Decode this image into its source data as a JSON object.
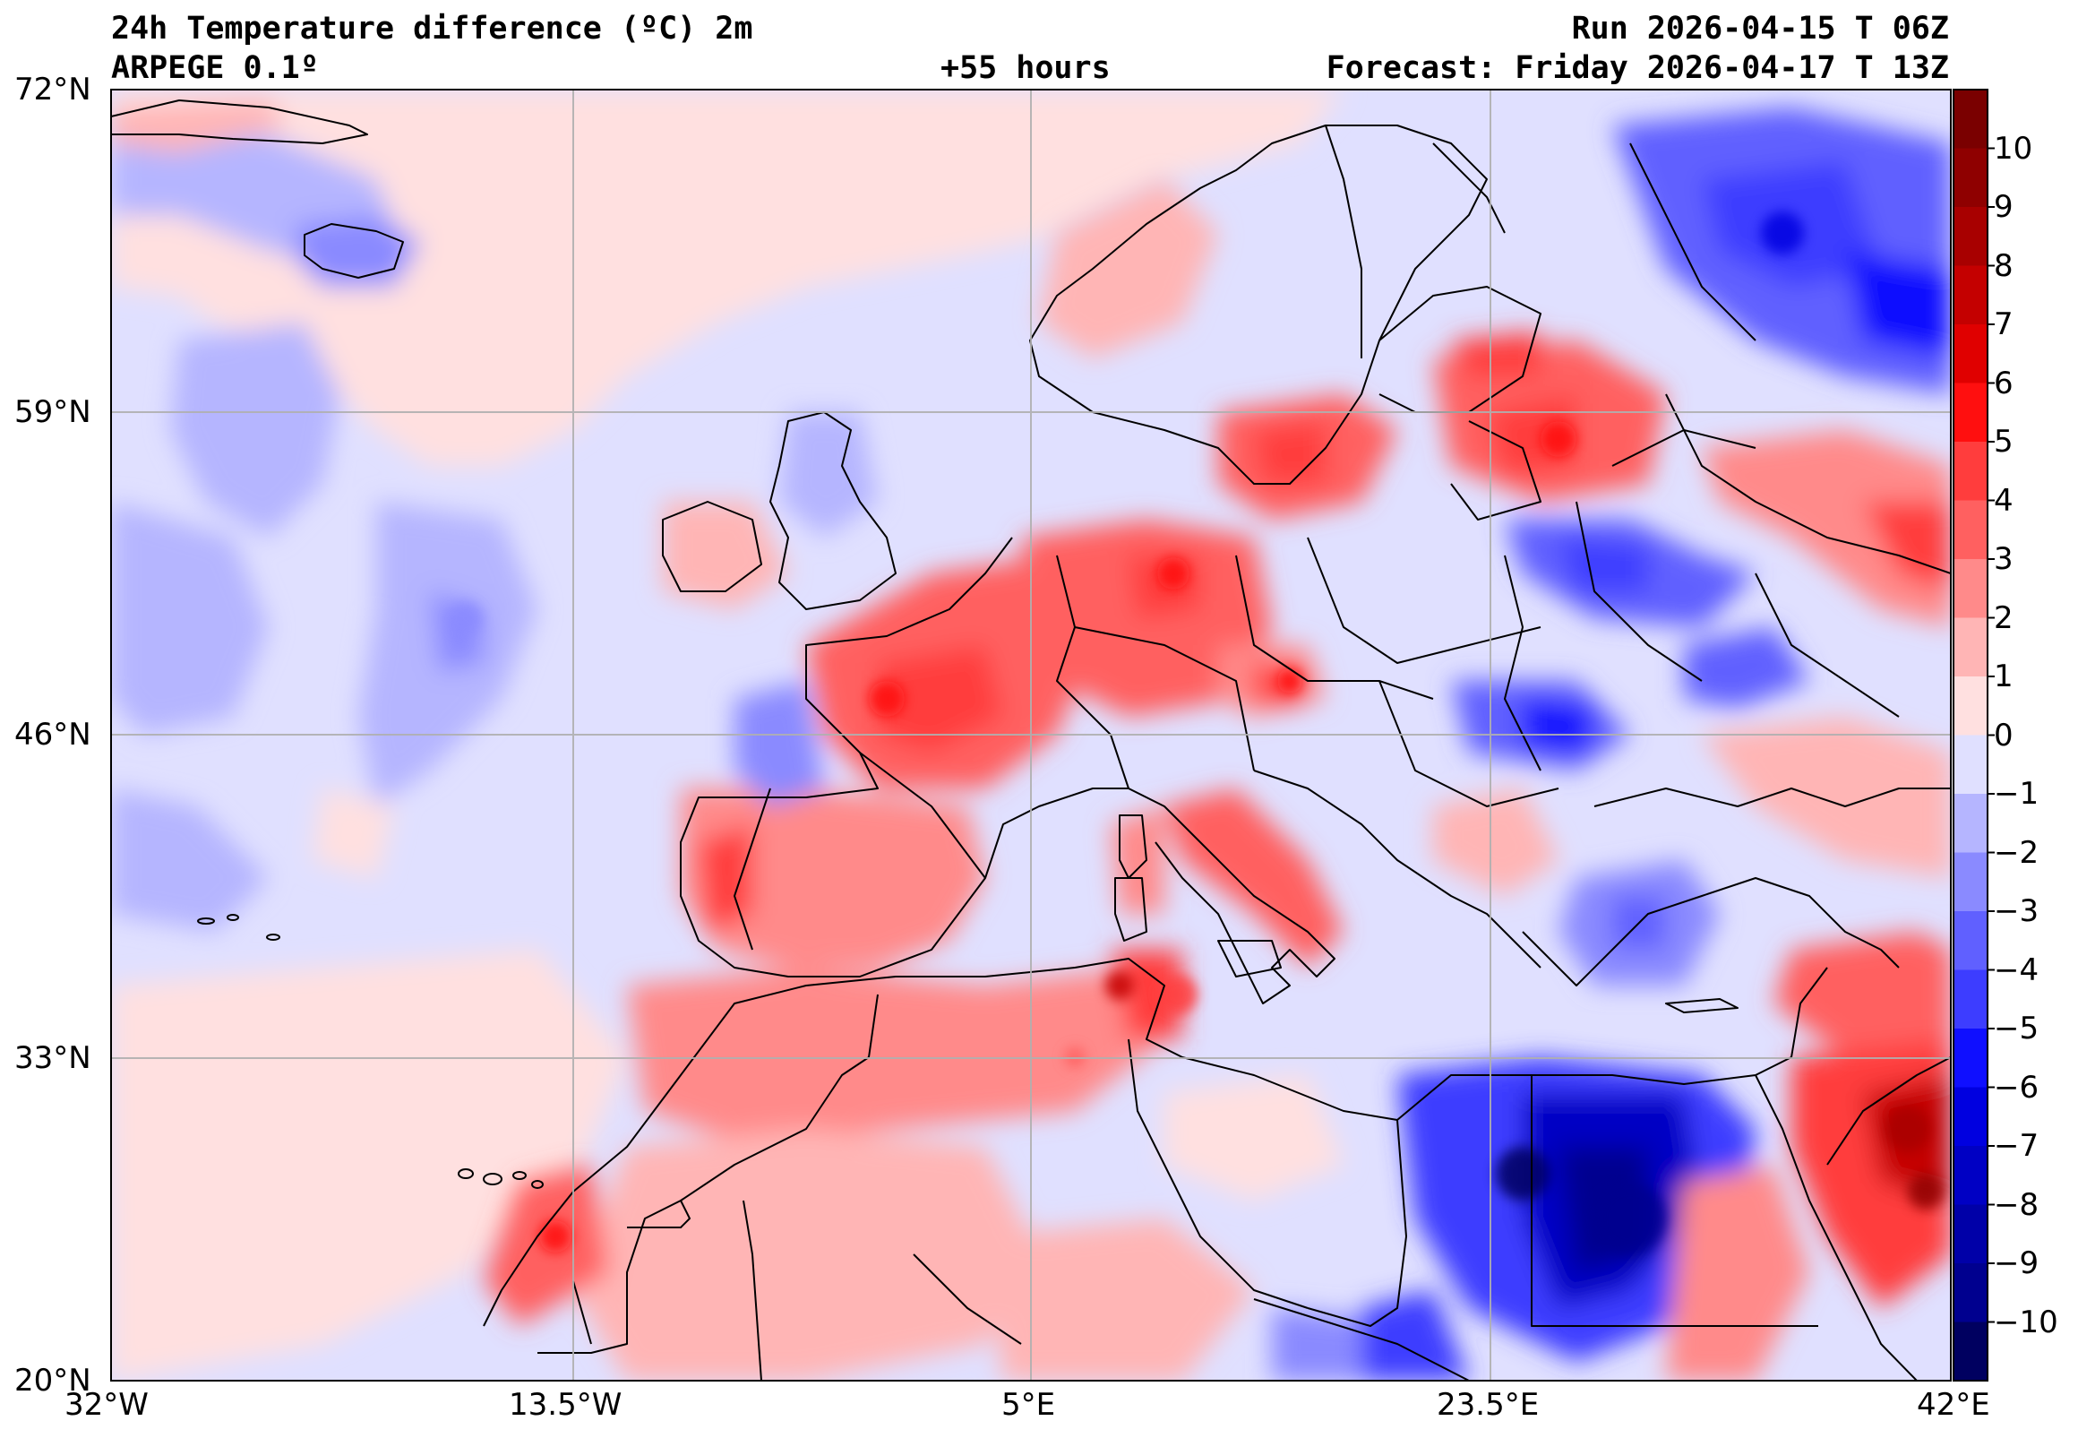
{
  "header": {
    "title": "24h Temperature difference (ºC) 2m",
    "model": "ARPEGE 0.1º",
    "lead_time": "+55 hours",
    "run": "Run 2026-04-15 T 06Z",
    "forecast": "Forecast: Friday 2026-04-17 T 13Z"
  },
  "map": {
    "lat_labels": [
      "72°N",
      "59°N",
      "46°N",
      "33°N",
      "20°N"
    ],
    "lon_labels": [
      "32°W",
      "13.5°W",
      "5°E",
      "23.5°E",
      "42°E"
    ],
    "extent": {
      "lon_min": -32,
      "lon_max": 42,
      "lat_min": 20,
      "lat_max": 72
    }
  },
  "colorbar": {
    "labels": [
      "10",
      "9",
      "8",
      "7",
      "6",
      "5",
      "4",
      "3",
      "2",
      "1",
      "0",
      "−1",
      "−2",
      "−3",
      "−4",
      "−5",
      "−6",
      "−7",
      "−8",
      "−9",
      "−10"
    ],
    "colors": [
      "#7a0000",
      "#8f0000",
      "#a80000",
      "#c40000",
      "#e00000",
      "#ff0f0f",
      "#ff3d3d",
      "#ff6060",
      "#ff8a8a",
      "#ffb5b5",
      "#ffe0e0",
      "#e0e0ff",
      "#b5b5ff",
      "#8a8aff",
      "#6060ff",
      "#3d3dff",
      "#0f0fff",
      "#0000e0",
      "#0000c4",
      "#0000a8",
      "#00008f",
      "#000060"
    ]
  }
}
